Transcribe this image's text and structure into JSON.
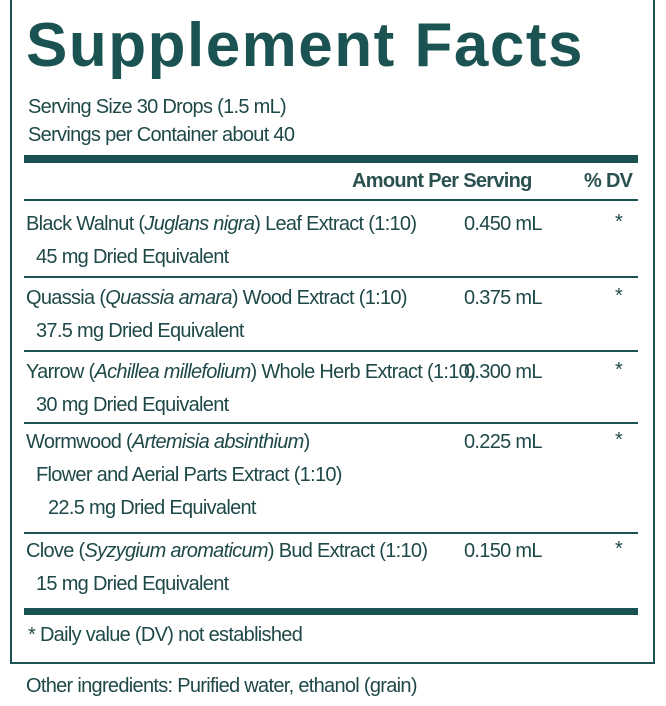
{
  "title": "Supplement Facts",
  "serving_size": "Serving Size 30 Drops (1.5 mL)",
  "servings_per_container": "Servings per Container about 40",
  "header": {
    "amount": "Amount Per Serving",
    "dv": "% DV"
  },
  "rows": [
    {
      "pre": "Black Walnut (",
      "latin": "Juglans nigra",
      "post": ") Leaf Extract (1:10)",
      "details": [
        "45 mg Dried Equivalent"
      ],
      "amount": "0.450 mL",
      "dv": "*"
    },
    {
      "pre": "Quassia (",
      "latin": "Quassia amara",
      "post": ") Wood Extract (1:10)",
      "details": [
        "37.5 mg Dried Equivalent"
      ],
      "amount": "0.375 mL",
      "dv": "*"
    },
    {
      "pre": "Yarrow (",
      "latin": "Achillea millefolium",
      "post": ") Whole Herb Extract (1:10)",
      "details": [
        "30 mg Dried Equivalent"
      ],
      "amount": "0.300 mL",
      "dv": "*"
    },
    {
      "pre": "Wormwood (",
      "latin": "Artemisia absinthium",
      "post": ")",
      "details": [
        "Flower and Aerial Parts Extract (1:10)",
        "22.5 mg Dried Equivalent"
      ],
      "amount": "0.225 mL",
      "dv": "*"
    },
    {
      "pre": "Clove (",
      "latin": "Syzygium aromaticum",
      "post": ") Bud Extract (1:10)",
      "details": [
        "15 mg Dried Equivalent"
      ],
      "amount": "0.150 mL",
      "dv": "*"
    }
  ],
  "footnote": "* Daily value (DV) not established",
  "other_ingredients": "Other ingredients: Purified water, ethanol (grain)"
}
